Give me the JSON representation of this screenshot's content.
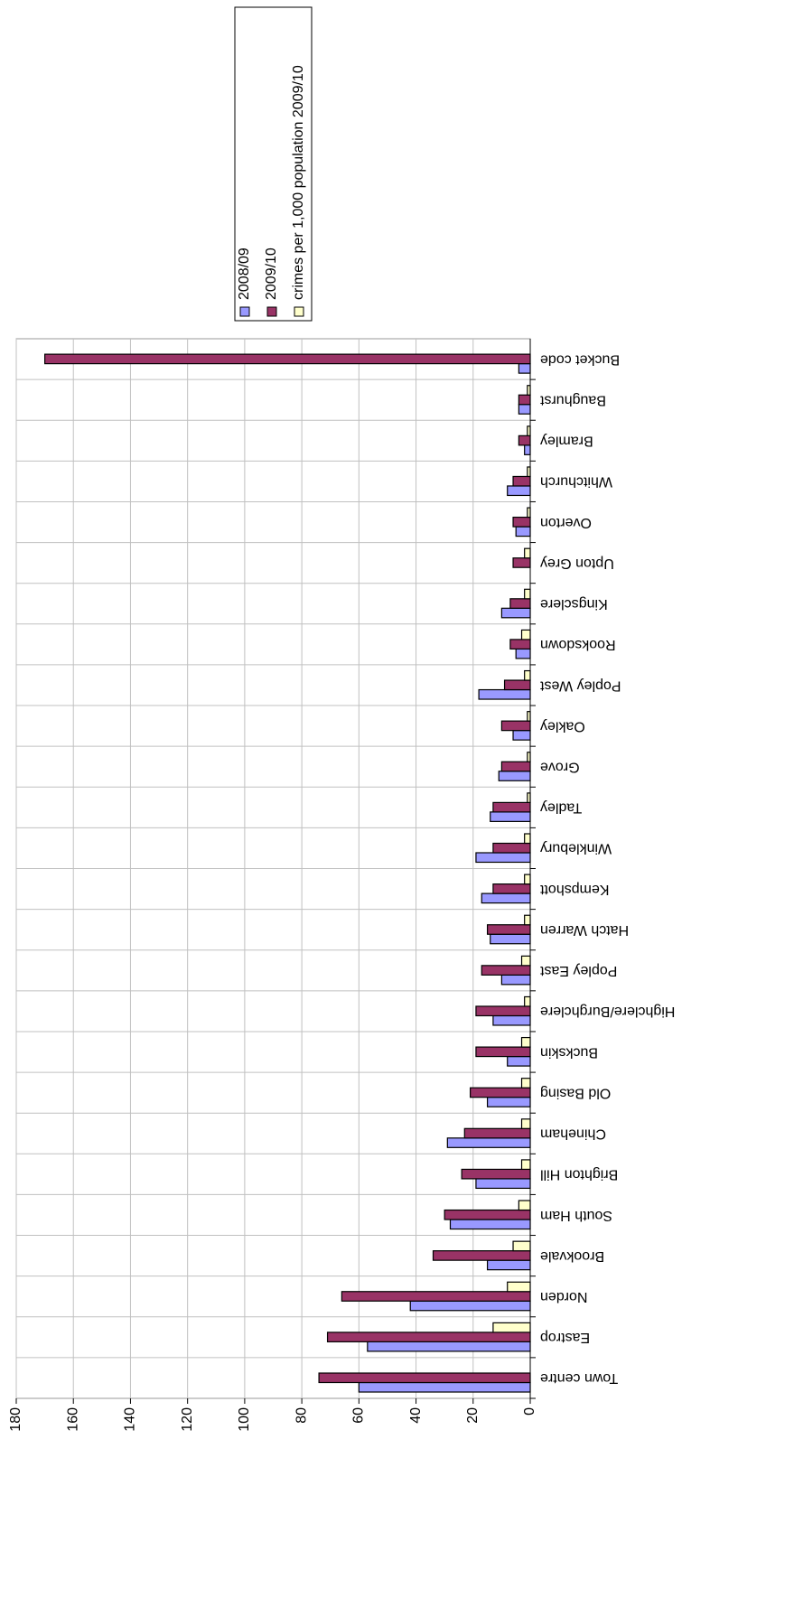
{
  "chart_data": {
    "type": "bar",
    "categories": [
      "Town centre",
      "Eastrop",
      "Norden",
      "Brookvale",
      "South Ham",
      "Brighton Hill",
      "Chineham",
      "Old Basing",
      "Buckskin",
      "Highclere/Burghclere",
      "Popley East",
      "Hatch Warren",
      "Kempshott",
      "Winklebury",
      "Tadley",
      "Grove",
      "Oakley",
      "Popley West",
      "Rooksdown",
      "Kingsclere",
      "Upton Grey",
      "Overton",
      "Whitchurch",
      "Bramley",
      "Baughurst",
      "Bucket code"
    ],
    "series": [
      {
        "name": "2008/09",
        "color": "#9999ff",
        "values": [
          60,
          57,
          42,
          15,
          28,
          19,
          29,
          15,
          8,
          13,
          10,
          14,
          17,
          19,
          14,
          11,
          6,
          18,
          5,
          10,
          0,
          5,
          8,
          2,
          4,
          4
        ]
      },
      {
        "name": "2009/10",
        "color": "#993366",
        "values": [
          74,
          71,
          66,
          34,
          30,
          24,
          23,
          21,
          19,
          19,
          17,
          15,
          13,
          13,
          13,
          10,
          10,
          9,
          7,
          7,
          6,
          6,
          6,
          4,
          4,
          170
        ]
      },
      {
        "name": "crimes per 1,000 population 2009/10",
        "color": "#ffffcc",
        "values": [
          null,
          13,
          8,
          6,
          4,
          3,
          3,
          3,
          3,
          2,
          3,
          2,
          2,
          2,
          1,
          1,
          1,
          2,
          3,
          2,
          2,
          1,
          1,
          1,
          1,
          null
        ]
      }
    ],
    "ylim": [
      0,
      180
    ],
    "yticks": [
      0,
      20,
      40,
      60,
      80,
      100,
      120,
      140,
      160,
      180
    ],
    "grid": true
  }
}
